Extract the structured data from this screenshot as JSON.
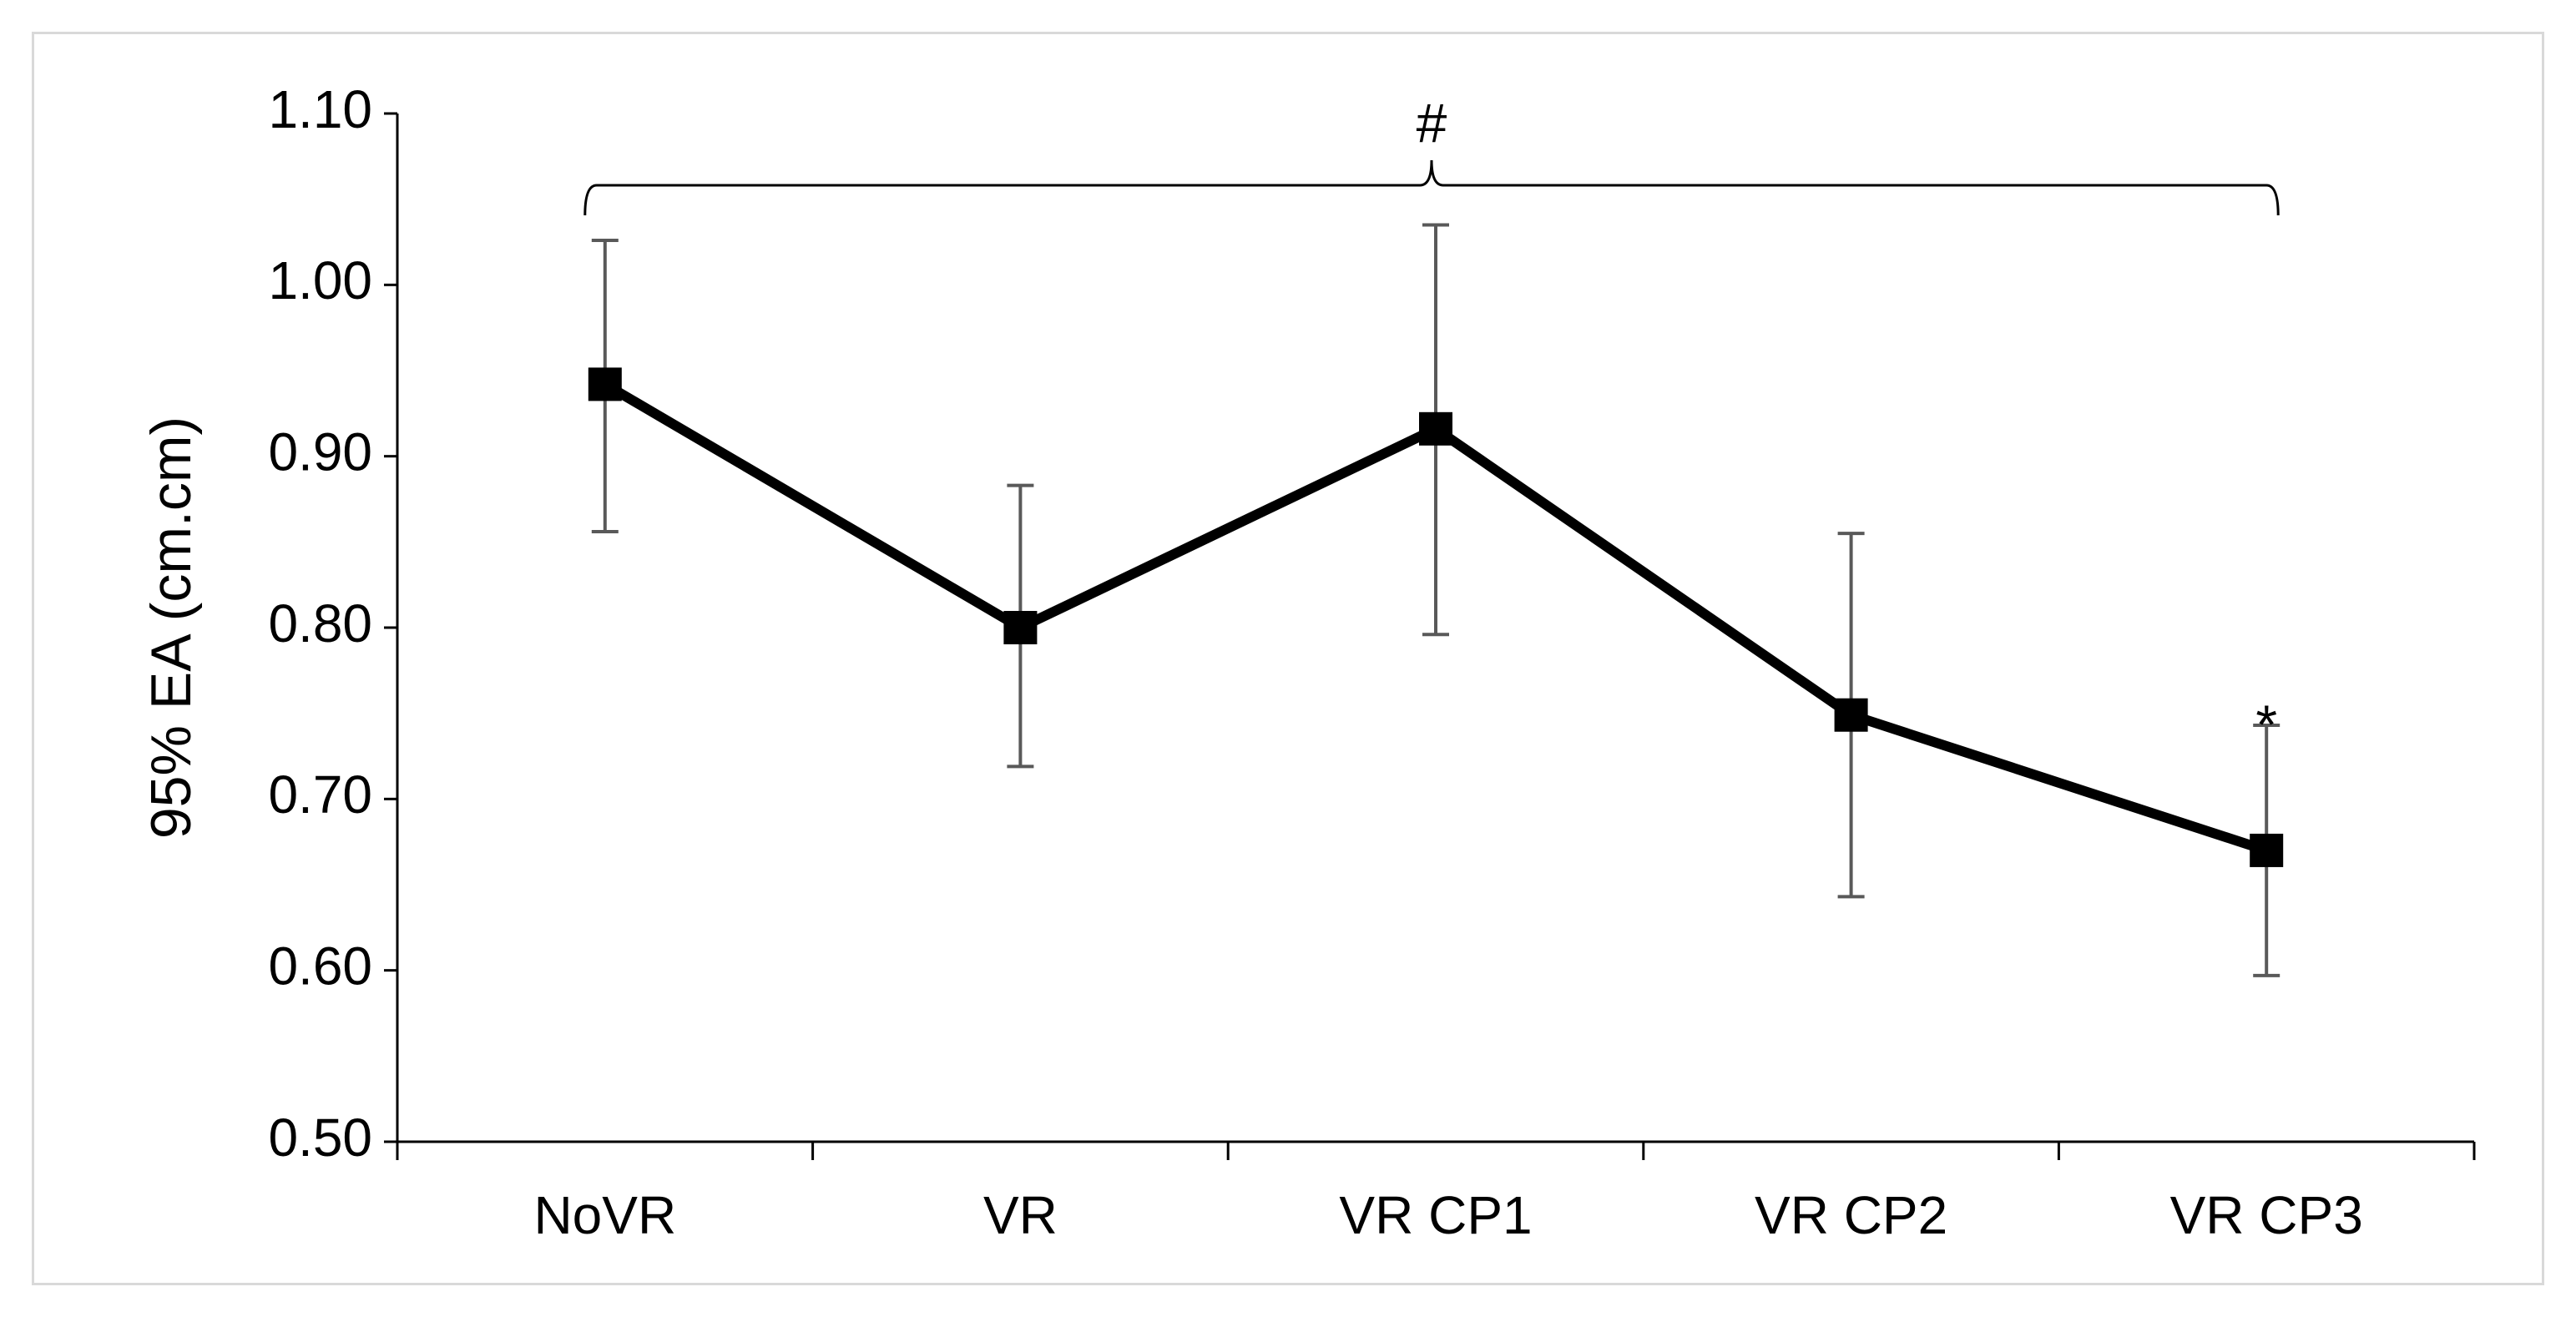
{
  "chart_data": {
    "type": "line",
    "title": "",
    "xlabel": "",
    "ylabel": "95% EA (cm.cm)",
    "ylim": [
      0.5,
      1.1
    ],
    "yticks": [
      "0.50",
      "0.60",
      "0.70",
      "0.80",
      "0.90",
      "1.00",
      "1.10"
    ],
    "categories": [
      "NoVR",
      "VR",
      "VR CP1",
      "VR CP2",
      "VR CP3"
    ],
    "series": [
      {
        "name": "95% EA",
        "values": [
          0.942,
          0.8,
          0.916,
          0.749,
          0.67
        ],
        "error_upper": [
          1.026,
          0.883,
          1.035,
          0.855,
          0.743
        ],
        "error_lower": [
          0.856,
          0.719,
          0.796,
          0.643,
          0.597
        ]
      }
    ],
    "grid": false,
    "legend": "none",
    "annotations": {
      "bracket_label": "#",
      "bracket_span": [
        "NoVR",
        "VR CP3"
      ],
      "point_marks": [
        {
          "category": "VR CP3",
          "label": "*"
        }
      ]
    }
  }
}
